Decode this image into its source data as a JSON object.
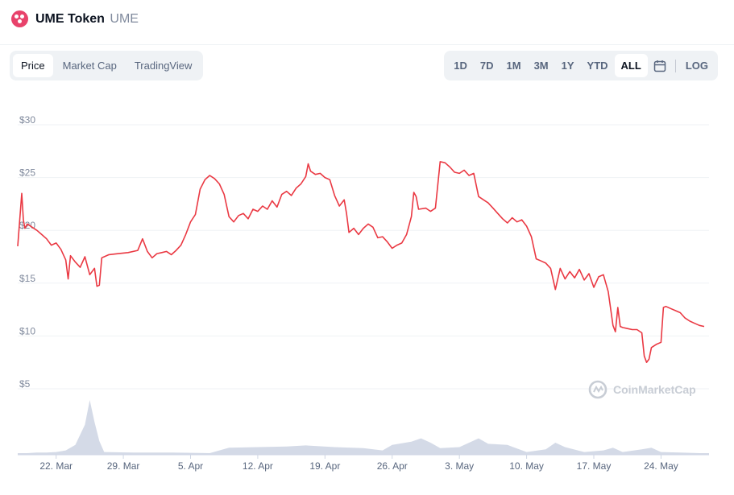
{
  "token": {
    "name": "UME Token",
    "symbol": "UME"
  },
  "view_tabs": [
    "Price",
    "Market Cap",
    "TradingView"
  ],
  "active_tab": "Price",
  "ranges": [
    "1D",
    "7D",
    "1M",
    "3M",
    "1Y",
    "YTD",
    "ALL"
  ],
  "active_range": "ALL",
  "log_label": "LOG",
  "watermark": "CoinMarketCap",
  "colors": {
    "line": "#ea3943",
    "volume": "#cfd6e4",
    "logo": "#e8426b"
  },
  "chart_data": {
    "type": "line",
    "title": "",
    "xlabel": "",
    "ylabel": "",
    "x_start": "2021-03-18",
    "x_end": "2021-05-29",
    "x_ticks": [
      {
        "label": "22. Mar",
        "x": "2021-03-22"
      },
      {
        "label": "29. Mar",
        "x": "2021-03-29"
      },
      {
        "label": "5. Apr",
        "x": "2021-04-05"
      },
      {
        "label": "12. Apr",
        "x": "2021-04-12"
      },
      {
        "label": "19. Apr",
        "x": "2021-04-19"
      },
      {
        "label": "26. Apr",
        "x": "2021-04-26"
      },
      {
        "label": "3. May",
        "x": "2021-05-03"
      },
      {
        "label": "10. May",
        "x": "2021-05-10"
      },
      {
        "label": "17. May",
        "x": "2021-05-17"
      },
      {
        "label": "24. May",
        "x": "2021-05-24"
      }
    ],
    "y_ticks": [
      {
        "label": "$5",
        "value": 5
      },
      {
        "label": "$10",
        "value": 10
      },
      {
        "label": "$15",
        "value": 15
      },
      {
        "label": "$20",
        "value": 20
      },
      {
        "label": "$25",
        "value": 25
      },
      {
        "label": "$30",
        "value": 30
      }
    ],
    "ylim": [
      4.6,
      30.4
    ],
    "grid": true,
    "series": [
      {
        "values": [
          [
            "2021-03-18 00:00",
            18.5
          ],
          [
            "2021-03-18 06:00",
            21.5
          ],
          [
            "2021-03-18 10:00",
            23.5
          ],
          [
            "2021-03-18 14:00",
            21.0
          ],
          [
            "2021-03-18 18:00",
            20.2
          ],
          [
            "2021-03-19 00:00",
            20.6
          ],
          [
            "2021-03-19 12:00",
            20.3
          ],
          [
            "2021-03-20 00:00",
            20.0
          ],
          [
            "2021-03-20 12:00",
            19.6
          ],
          [
            "2021-03-21 00:00",
            19.2
          ],
          [
            "2021-03-21 12:00",
            18.6
          ],
          [
            "2021-03-22 00:00",
            18.8
          ],
          [
            "2021-03-22 12:00",
            18.2
          ],
          [
            "2021-03-23 00:00",
            17.2
          ],
          [
            "2021-03-23 06:00",
            15.4
          ],
          [
            "2021-03-23 12:00",
            17.6
          ],
          [
            "2021-03-24 00:00",
            17.0
          ],
          [
            "2021-03-24 12:00",
            16.5
          ],
          [
            "2021-03-25 00:00",
            17.5
          ],
          [
            "2021-03-25 12:00",
            15.8
          ],
          [
            "2021-03-26 00:00",
            16.4
          ],
          [
            "2021-03-26 06:00",
            14.7
          ],
          [
            "2021-03-26 12:00",
            14.8
          ],
          [
            "2021-03-26 18:00",
            17.4
          ],
          [
            "2021-03-27 12:00",
            17.7
          ],
          [
            "2021-03-28 12:00",
            17.8
          ],
          [
            "2021-03-29 12:00",
            17.9
          ],
          [
            "2021-03-30 12:00",
            18.1
          ],
          [
            "2021-03-31 00:00",
            19.2
          ],
          [
            "2021-03-31 12:00",
            18.0
          ],
          [
            "2021-04-01 00:00",
            17.4
          ],
          [
            "2021-04-01 12:00",
            17.8
          ],
          [
            "2021-04-02 00:00",
            17.9
          ],
          [
            "2021-04-02 12:00",
            18.0
          ],
          [
            "2021-04-03 00:00",
            17.7
          ],
          [
            "2021-04-03 12:00",
            18.1
          ],
          [
            "2021-04-04 00:00",
            18.6
          ],
          [
            "2021-04-04 12:00",
            19.6
          ],
          [
            "2021-04-05 00:00",
            20.8
          ],
          [
            "2021-04-05 12:00",
            21.5
          ],
          [
            "2021-04-06 00:00",
            23.9
          ],
          [
            "2021-04-06 12:00",
            24.8
          ],
          [
            "2021-04-07 00:00",
            25.2
          ],
          [
            "2021-04-07 12:00",
            24.9
          ],
          [
            "2021-04-08 00:00",
            24.4
          ],
          [
            "2021-04-08 12:00",
            23.4
          ],
          [
            "2021-04-09 00:00",
            21.3
          ],
          [
            "2021-04-09 12:00",
            20.8
          ],
          [
            "2021-04-10 00:00",
            21.4
          ],
          [
            "2021-04-10 12:00",
            21.6
          ],
          [
            "2021-04-11 00:00",
            21.1
          ],
          [
            "2021-04-11 12:00",
            22.0
          ],
          [
            "2021-04-12 00:00",
            21.8
          ],
          [
            "2021-04-12 12:00",
            22.3
          ],
          [
            "2021-04-13 00:00",
            22.0
          ],
          [
            "2021-04-13 12:00",
            22.8
          ],
          [
            "2021-04-14 00:00",
            22.2
          ],
          [
            "2021-04-14 12:00",
            23.4
          ],
          [
            "2021-04-15 00:00",
            23.7
          ],
          [
            "2021-04-15 12:00",
            23.3
          ],
          [
            "2021-04-16 00:00",
            24.0
          ],
          [
            "2021-04-16 12:00",
            24.4
          ],
          [
            "2021-04-17 00:00",
            25.1
          ],
          [
            "2021-04-17 06:00",
            26.3
          ],
          [
            "2021-04-17 12:00",
            25.6
          ],
          [
            "2021-04-18 00:00",
            25.3
          ],
          [
            "2021-04-18 12:00",
            25.4
          ],
          [
            "2021-04-19 00:00",
            25.0
          ],
          [
            "2021-04-19 12:00",
            24.8
          ],
          [
            "2021-04-20 00:00",
            23.3
          ],
          [
            "2021-04-20 12:00",
            22.3
          ],
          [
            "2021-04-21 00:00",
            22.9
          ],
          [
            "2021-04-21 06:00",
            21.6
          ],
          [
            "2021-04-21 12:00",
            19.8
          ],
          [
            "2021-04-22 00:00",
            20.2
          ],
          [
            "2021-04-22 12:00",
            19.6
          ],
          [
            "2021-04-23 00:00",
            20.2
          ],
          [
            "2021-04-23 12:00",
            20.6
          ],
          [
            "2021-04-24 00:00",
            20.3
          ],
          [
            "2021-04-24 12:00",
            19.3
          ],
          [
            "2021-04-25 00:00",
            19.4
          ],
          [
            "2021-04-25 12:00",
            18.9
          ],
          [
            "2021-04-26 00:00",
            18.3
          ],
          [
            "2021-04-26 12:00",
            18.6
          ],
          [
            "2021-04-27 00:00",
            18.8
          ],
          [
            "2021-04-27 12:00",
            19.6
          ],
          [
            "2021-04-28 00:00",
            21.3
          ],
          [
            "2021-04-28 06:00",
            23.6
          ],
          [
            "2021-04-28 12:00",
            23.2
          ],
          [
            "2021-04-28 18:00",
            22.0
          ],
          [
            "2021-04-29 12:00",
            22.1
          ],
          [
            "2021-04-30 00:00",
            21.8
          ],
          [
            "2021-04-30 12:00",
            22.1
          ],
          [
            "2021-05-01 00:00",
            26.5
          ],
          [
            "2021-05-01 12:00",
            26.4
          ],
          [
            "2021-05-02 00:00",
            26.0
          ],
          [
            "2021-05-02 12:00",
            25.5
          ],
          [
            "2021-05-03 00:00",
            25.4
          ],
          [
            "2021-05-03 12:00",
            25.7
          ],
          [
            "2021-05-04 00:00",
            25.2
          ],
          [
            "2021-05-04 12:00",
            25.4
          ],
          [
            "2021-05-05 00:00",
            23.2
          ],
          [
            "2021-05-05 12:00",
            22.9
          ],
          [
            "2021-05-06 00:00",
            22.6
          ],
          [
            "2021-05-06 12:00",
            22.1
          ],
          [
            "2021-05-07 00:00",
            21.6
          ],
          [
            "2021-05-07 12:00",
            21.1
          ],
          [
            "2021-05-08 00:00",
            20.7
          ],
          [
            "2021-05-08 12:00",
            21.2
          ],
          [
            "2021-05-09 00:00",
            20.8
          ],
          [
            "2021-05-09 12:00",
            21.0
          ],
          [
            "2021-05-10 00:00",
            20.4
          ],
          [
            "2021-05-10 12:00",
            19.4
          ],
          [
            "2021-05-11 00:00",
            17.3
          ],
          [
            "2021-05-11 12:00",
            17.1
          ],
          [
            "2021-05-12 00:00",
            16.9
          ],
          [
            "2021-05-12 12:00",
            16.4
          ],
          [
            "2021-05-13 00:00",
            14.4
          ],
          [
            "2021-05-13 12:00",
            16.4
          ],
          [
            "2021-05-14 00:00",
            15.4
          ],
          [
            "2021-05-14 12:00",
            16.1
          ],
          [
            "2021-05-15 00:00",
            15.5
          ],
          [
            "2021-05-15 12:00",
            16.3
          ],
          [
            "2021-05-16 00:00",
            15.3
          ],
          [
            "2021-05-16 12:00",
            15.9
          ],
          [
            "2021-05-17 00:00",
            14.6
          ],
          [
            "2021-05-17 12:00",
            15.6
          ],
          [
            "2021-05-18 00:00",
            15.8
          ],
          [
            "2021-05-18 12:00",
            14.2
          ],
          [
            "2021-05-19 00:00",
            11.0
          ],
          [
            "2021-05-19 06:00",
            10.4
          ],
          [
            "2021-05-19 12:00",
            12.7
          ],
          [
            "2021-05-19 18:00",
            10.9
          ],
          [
            "2021-05-20 00:00",
            10.8
          ],
          [
            "2021-05-20 12:00",
            10.7
          ],
          [
            "2021-05-21 00:00",
            10.6
          ],
          [
            "2021-05-21 12:00",
            10.6
          ],
          [
            "2021-05-22 00:00",
            10.3
          ],
          [
            "2021-05-22 06:00",
            8.1
          ],
          [
            "2021-05-22 12:00",
            7.5
          ],
          [
            "2021-05-22 18:00",
            7.8
          ],
          [
            "2021-05-23 00:00",
            8.9
          ],
          [
            "2021-05-23 12:00",
            9.2
          ],
          [
            "2021-05-24 00:00",
            9.4
          ],
          [
            "2021-05-24 06:00",
            12.7
          ],
          [
            "2021-05-24 12:00",
            12.8
          ],
          [
            "2021-05-25 00:00",
            12.6
          ],
          [
            "2021-05-25 12:00",
            12.4
          ],
          [
            "2021-05-26 00:00",
            12.2
          ],
          [
            "2021-05-26 12:00",
            11.7
          ],
          [
            "2021-05-27 00:00",
            11.4
          ],
          [
            "2021-05-27 12:00",
            11.2
          ],
          [
            "2021-05-28 00:00",
            11.0
          ],
          [
            "2021-05-28 12:00",
            10.9
          ]
        ]
      }
    ],
    "volume": {
      "unit": "relative",
      "values": [
        [
          "2021-03-18",
          0.03
        ],
        [
          "2021-03-19",
          0.03
        ],
        [
          "2021-03-20",
          0.04
        ],
        [
          "2021-03-21",
          0.04
        ],
        [
          "2021-03-22",
          0.05
        ],
        [
          "2021-03-23",
          0.08
        ],
        [
          "2021-03-24",
          0.18
        ],
        [
          "2021-03-25",
          0.55
        ],
        [
          "2021-03-25 12:00",
          1.0
        ],
        [
          "2021-03-26",
          0.6
        ],
        [
          "2021-03-26 12:00",
          0.25
        ],
        [
          "2021-03-27",
          0.05
        ],
        [
          "2021-03-30",
          0.04
        ],
        [
          "2021-04-03",
          0.04
        ],
        [
          "2021-04-07",
          0.03
        ],
        [
          "2021-04-09",
          0.13
        ],
        [
          "2021-04-12",
          0.14
        ],
        [
          "2021-04-15",
          0.15
        ],
        [
          "2021-04-17",
          0.17
        ],
        [
          "2021-04-20",
          0.14
        ],
        [
          "2021-04-23",
          0.12
        ],
        [
          "2021-04-25",
          0.08
        ],
        [
          "2021-04-26",
          0.18
        ],
        [
          "2021-04-28",
          0.24
        ],
        [
          "2021-04-29",
          0.3
        ],
        [
          "2021-04-30",
          0.22
        ],
        [
          "2021-05-01",
          0.12
        ],
        [
          "2021-05-03",
          0.14
        ],
        [
          "2021-05-05",
          0.3
        ],
        [
          "2021-05-06",
          0.2
        ],
        [
          "2021-05-08",
          0.18
        ],
        [
          "2021-05-10",
          0.05
        ],
        [
          "2021-05-12",
          0.1
        ],
        [
          "2021-05-13",
          0.22
        ],
        [
          "2021-05-14",
          0.14
        ],
        [
          "2021-05-16",
          0.05
        ],
        [
          "2021-05-18",
          0.08
        ],
        [
          "2021-05-19",
          0.13
        ],
        [
          "2021-05-20",
          0.05
        ],
        [
          "2021-05-22",
          0.1
        ],
        [
          "2021-05-23",
          0.13
        ],
        [
          "2021-05-24",
          0.05
        ],
        [
          "2021-05-26",
          0.04
        ],
        [
          "2021-05-28",
          0.03
        ]
      ]
    }
  }
}
